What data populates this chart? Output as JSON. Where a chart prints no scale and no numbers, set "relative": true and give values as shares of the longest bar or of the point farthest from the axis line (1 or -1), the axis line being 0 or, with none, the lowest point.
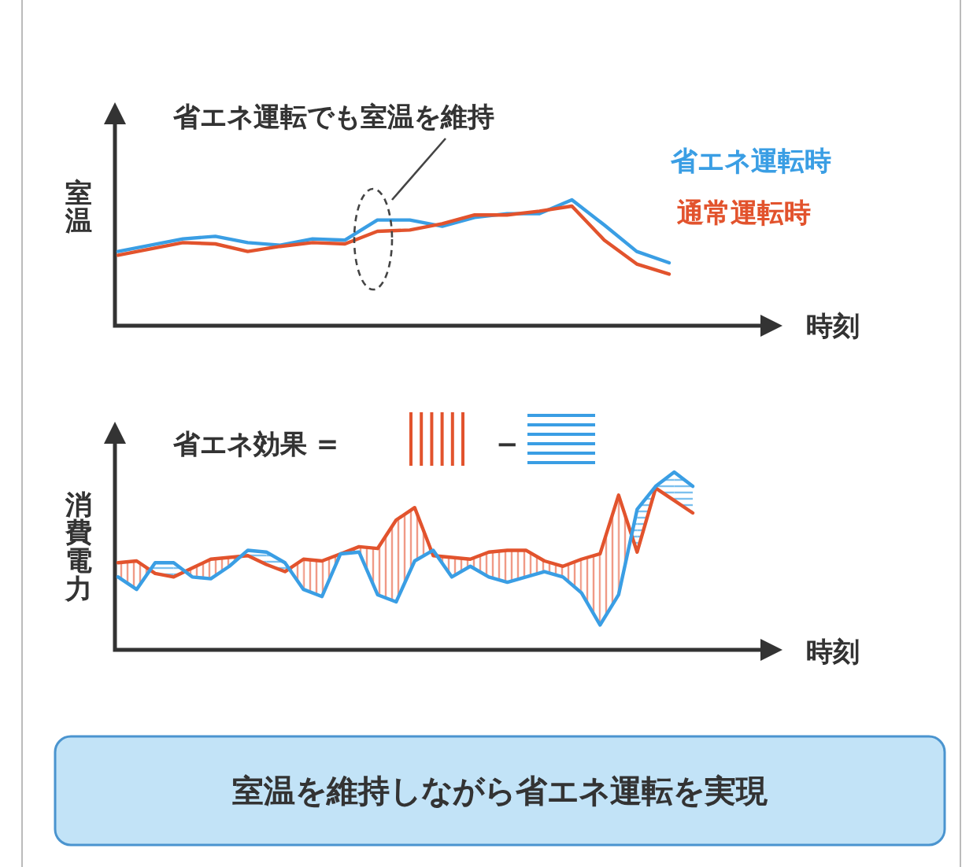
{
  "chart_data": [
    {
      "type": "line",
      "relative": true,
      "ylabel": "室温",
      "xlabel": "時刻",
      "legend": "top right",
      "annotations": [
        "省エネ運転でも室温を維持"
      ],
      "categories": [
        null,
        null,
        null,
        null,
        null,
        null,
        null,
        null,
        null,
        null,
        null,
        null,
        null,
        null,
        null,
        null,
        null,
        null
      ],
      "series": [
        {
          "name": "省エネ運転時",
          "color": "#3a9ee4",
          "values": [
            0.59,
            0.64,
            0.69,
            0.71,
            0.66,
            0.64,
            0.69,
            0.68,
            0.84,
            0.84,
            0.79,
            0.86,
            0.89,
            0.89,
            1.0,
            0.8,
            0.59,
            0.5
          ]
        },
        {
          "name": "通常運転時",
          "color": "#e2532d",
          "values": [
            0.56,
            0.61,
            0.66,
            0.65,
            0.59,
            0.63,
            0.66,
            0.65,
            0.75,
            0.76,
            0.81,
            0.88,
            0.88,
            0.91,
            0.95,
            0.68,
            0.49,
            0.41
          ]
        }
      ]
    },
    {
      "type": "line",
      "relative": true,
      "ylabel": "消費電力",
      "xlabel": "時刻",
      "annotations": [
        "省エネ効果 =",
        "−"
      ],
      "categories": [
        null,
        null,
        null,
        null,
        null,
        null,
        null,
        null,
        null,
        null,
        null,
        null,
        null,
        null,
        null,
        null,
        null,
        null,
        null,
        null,
        null,
        null,
        null,
        null,
        null,
        null,
        null,
        null,
        null,
        null,
        null,
        null
      ],
      "series": [
        {
          "color": "#e2532d",
          "values": [
            0.49,
            0.5,
            0.43,
            0.41,
            0.46,
            0.51,
            0.52,
            0.53,
            0.48,
            0.44,
            0.51,
            0.5,
            0.54,
            0.58,
            0.57,
            0.73,
            0.8,
            0.53,
            0.52,
            0.51,
            0.55,
            0.56,
            0.56,
            0.5,
            0.47,
            0.51,
            0.54,
            0.87,
            0.55,
            0.91,
            0.84,
            0.77
          ]
        },
        {
          "color": "#3a9ee4",
          "values": [
            0.41,
            0.34,
            0.49,
            0.49,
            0.41,
            0.4,
            0.47,
            0.56,
            0.55,
            0.49,
            0.34,
            0.3,
            0.54,
            0.55,
            0.31,
            0.27,
            0.5,
            0.56,
            0.41,
            0.47,
            0.41,
            0.38,
            0.41,
            0.44,
            0.41,
            0.32,
            0.14,
            0.31,
            0.79,
            0.92,
            1.0,
            0.92
          ]
        }
      ]
    },
    {
      "type": "other",
      "title": "室温を維持しながら省エネ運転を実現"
    }
  ]
}
